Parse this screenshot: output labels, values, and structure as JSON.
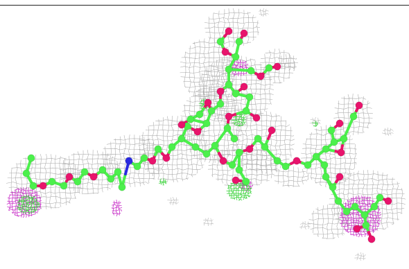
{
  "scene": {
    "background": "#ffffff",
    "top_rule_color": "#222222",
    "colors": {
      "carbon": "#4cf04c",
      "oxygen": "#e8146c",
      "nitrogen": "#2a2ae0",
      "density_mesh": "#a8a8a8",
      "positive_difference_mesh": "#3ad23a",
      "negative_difference_mesh": "#c832c8"
    }
  }
}
